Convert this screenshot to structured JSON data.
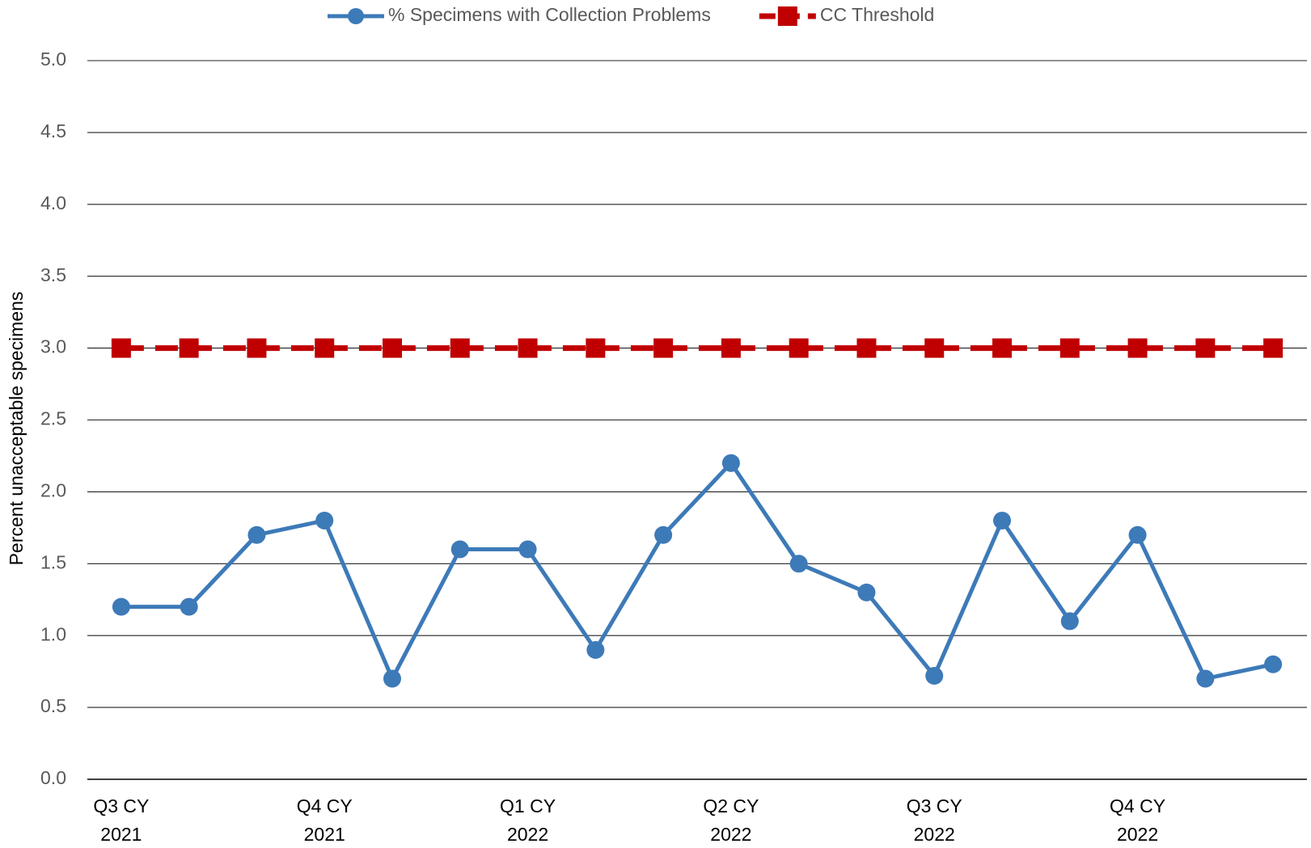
{
  "chart_data": {
    "type": "line",
    "y_label": "Percent unacceptable specimens",
    "categories": [
      "Q3 CY 2021",
      null,
      null,
      "Q4 CY 2021",
      null,
      null,
      "Q1 CY 2022",
      null,
      null,
      "Q2 CY 2022",
      null,
      null,
      "Q3 CY 2022",
      null,
      null,
      "Q4 CY 2022",
      null,
      null
    ],
    "series": [
      {
        "name": "% Specimens with Collection Problems",
        "color": "#3d7ab8",
        "marker": "circle",
        "values": [
          1.2,
          1.2,
          1.7,
          1.8,
          0.7,
          1.6,
          1.6,
          0.9,
          1.7,
          2.2,
          1.5,
          1.3,
          0.72,
          1.8,
          1.1,
          1.7,
          0.7,
          0.8
        ]
      },
      {
        "name": "CC Threshold",
        "color": "#c00000",
        "marker": "square",
        "dashed": true,
        "values": [
          3,
          3,
          3,
          3,
          3,
          3,
          3,
          3,
          3,
          3,
          3,
          3,
          3,
          3,
          3,
          3,
          3,
          3
        ]
      }
    ],
    "ylim": [
      0,
      5
    ],
    "yticks": [
      {
        "value": 0,
        "label": "0.0"
      },
      {
        "value": 0.5,
        "label": "0.5"
      },
      {
        "value": 1,
        "label": "1.0"
      },
      {
        "value": 1.5,
        "label": "1.5"
      },
      {
        "value": 2,
        "label": "2.0"
      },
      {
        "value": 2.5,
        "label": "2.5"
      },
      {
        "value": 3,
        "label": "3.0"
      },
      {
        "value": 3.5,
        "label": "3.5"
      },
      {
        "value": 4,
        "label": "4.0"
      },
      {
        "value": 4.5,
        "label": "4.5"
      },
      {
        "value": 5,
        "label": "5.0"
      }
    ],
    "grid": true,
    "legend": "top"
  }
}
